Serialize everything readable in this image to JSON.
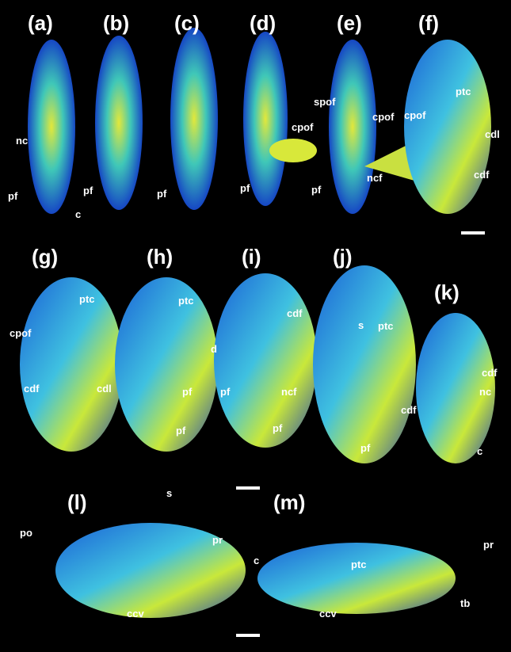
{
  "panels": [
    {
      "label": "(a)",
      "annotations": [
        "nc",
        "pf",
        "c"
      ]
    },
    {
      "label": "(b)",
      "annotations": [
        "pf"
      ]
    },
    {
      "label": "(c)",
      "annotations": [
        "pf"
      ]
    },
    {
      "label": "(d)",
      "annotations": [
        "cpof",
        "pf"
      ]
    },
    {
      "label": "(e)",
      "annotations": [
        "spof",
        "cpof",
        "pf",
        "ncf"
      ]
    },
    {
      "label": "(f)",
      "annotations": [
        "ptc",
        "cpof",
        "cdl",
        "cdf"
      ]
    },
    {
      "label": "(g)",
      "annotations": [
        "ptc",
        "cpof",
        "cdf",
        "cdl"
      ]
    },
    {
      "label": "(h)",
      "annotations": [
        "ptc",
        "d",
        "pf",
        "pf"
      ]
    },
    {
      "label": "(i)",
      "annotations": [
        "cdf",
        "ncf",
        "pf",
        "pf"
      ]
    },
    {
      "label": "(j)",
      "annotations": [
        "s",
        "ptc",
        "cdf",
        "pf"
      ]
    },
    {
      "label": "(k)",
      "annotations": [
        "cdf",
        "nc",
        "c"
      ]
    },
    {
      "label": "(l)",
      "annotations": [
        "s",
        "po",
        "pr",
        "c",
        "ccv"
      ]
    },
    {
      "label": "(m)",
      "annotations": [
        "ptc",
        "pr",
        "tb",
        "ccv"
      ]
    }
  ]
}
